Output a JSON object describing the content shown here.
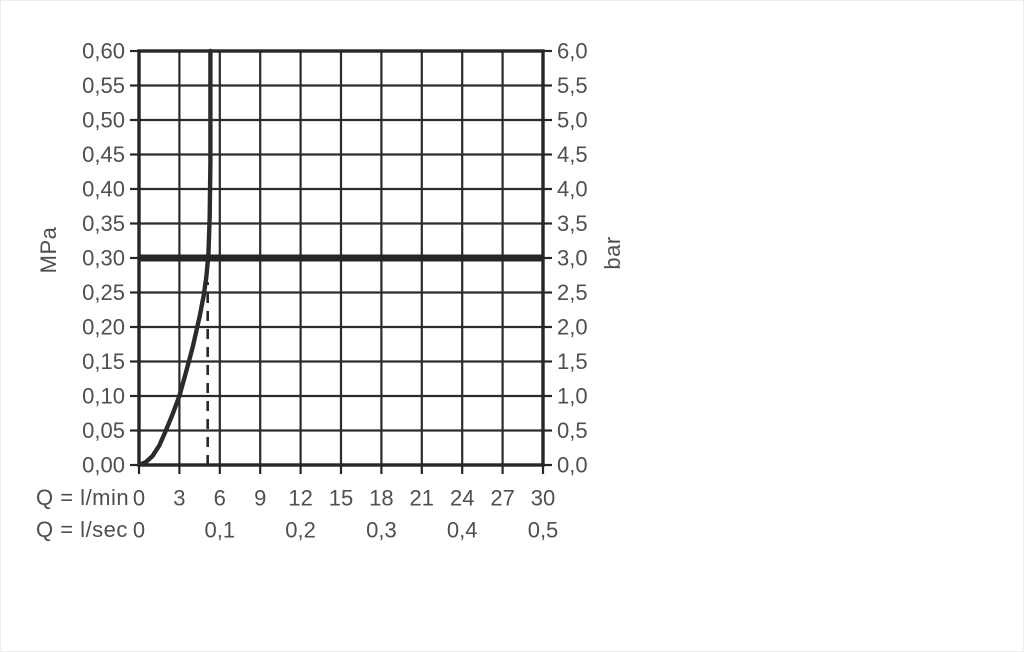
{
  "figure": {
    "left_unit": "MPa",
    "right_unit": "bar",
    "x_axis_primary_label": "Q = l/min",
    "x_axis_secondary_label": "Q = l/sec"
  },
  "chart_data": {
    "type": "line",
    "title": "",
    "grid": true,
    "y_axis_left": {
      "unit": "MPa",
      "min": 0,
      "max": 0.6,
      "step": 0.05,
      "tick_values": [
        0,
        0.05,
        0.1,
        0.15,
        0.2,
        0.25,
        0.3,
        0.35,
        0.4,
        0.45,
        0.5,
        0.55,
        0.6
      ],
      "tick_labels": [
        "0,00",
        "0,05",
        "0,10",
        "0,15",
        "0,20",
        "0,25",
        "0,30",
        "0,35",
        "0,40",
        "0,45",
        "0,50",
        "0,55",
        "0,60"
      ]
    },
    "y_axis_right": {
      "unit": "bar",
      "min": 0,
      "max": 6,
      "step": 0.5,
      "tick_values": [
        0,
        0.5,
        1,
        1.5,
        2,
        2.5,
        3,
        3.5,
        4,
        4.5,
        5,
        5.5,
        6
      ],
      "tick_labels": [
        "0,0",
        "0,5",
        "1,0",
        "1,5",
        "2,0",
        "2,5",
        "3,0",
        "3,5",
        "4,0",
        "4,5",
        "5,0",
        "5,5",
        "6,0"
      ]
    },
    "x_axis": {
      "unit": "l/min",
      "label": "Q = l/min",
      "min": 0,
      "max": 30,
      "step": 3,
      "tick_values": [
        0,
        3,
        6,
        9,
        12,
        15,
        18,
        21,
        24,
        27,
        30
      ],
      "tick_labels": [
        "0",
        "3",
        "6",
        "9",
        "12",
        "15",
        "18",
        "21",
        "24",
        "27",
        "30"
      ]
    },
    "x_axis_secondary": {
      "unit": "l/sec",
      "label": "Q = l/sec",
      "tick_positions_lmin": [
        0,
        6,
        12,
        18,
        24,
        30
      ],
      "tick_labels": [
        "0",
        "0,1",
        "0,2",
        "0,3",
        "0,4",
        "0,5"
      ]
    },
    "series": [
      {
        "name": "flow-curve",
        "type": "curve",
        "points_lmin_mpa": [
          [
            0,
            0
          ],
          [
            0.5,
            0.004
          ],
          [
            1,
            0.013
          ],
          [
            1.5,
            0.028
          ],
          [
            2,
            0.05
          ],
          [
            2.5,
            0.074
          ],
          [
            3,
            0.1
          ],
          [
            3.5,
            0.135
          ],
          [
            4,
            0.172
          ],
          [
            4.5,
            0.215
          ],
          [
            4.8,
            0.245
          ],
          [
            5.0,
            0.272
          ],
          [
            5.15,
            0.305
          ],
          [
            5.25,
            0.36
          ],
          [
            5.3,
            0.44
          ],
          [
            5.3,
            0.6
          ]
        ]
      },
      {
        "name": "reference-line-3-bar",
        "type": "hline",
        "y_mpa": 0.3
      },
      {
        "name": "flow-limit-marker",
        "type": "vline-dashed",
        "x_lmin": 5.1,
        "y_top_mpa": 0.265
      }
    ],
    "colors": {
      "grid": "#2b2b2b",
      "axis": "#262626",
      "curve": "#2b2b2b",
      "reference_line": "#262626",
      "dashed_line": "#262626",
      "tick_text": "#4f4f4f",
      "background": "#ffffff"
    }
  }
}
